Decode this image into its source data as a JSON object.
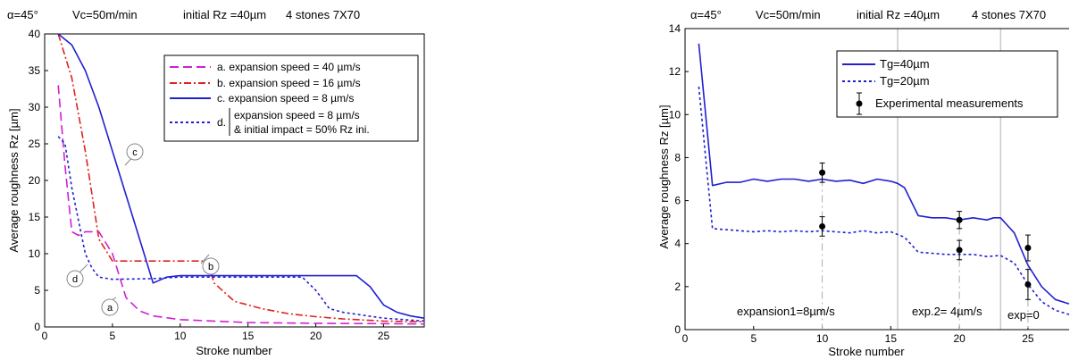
{
  "chart_data": [
    {
      "type": "line",
      "header": [
        "α=45°",
        "Vc=50m/min",
        "initial Rz =40µm",
        "4 stones 7X70"
      ],
      "title": "",
      "xlabel": "Stroke number",
      "ylabel": "Average roughness Rz [µm]",
      "xlim": [
        0,
        28
      ],
      "ylim": [
        0,
        40
      ],
      "xticks": [
        "0",
        "5",
        "10",
        "15",
        "20",
        "25"
      ],
      "yticks": [
        "0",
        "5",
        "10",
        "15",
        "20",
        "25",
        "30",
        "35",
        "40"
      ],
      "grid": false,
      "legend_position": "top-right",
      "legend": [
        {
          "key": "a",
          "lines": [
            "a. expansion speed = 40 µm/s"
          ]
        },
        {
          "key": "b",
          "lines": [
            "b. expansion speed = 16 µm/s"
          ]
        },
        {
          "key": "c",
          "lines": [
            "c. expansion speed =  8  µm/s"
          ]
        },
        {
          "key": "d",
          "prefix": "d.",
          "lines": [
            "expansion speed = 8  µm/s",
            "& initial impact = 50% Rz ini."
          ]
        }
      ],
      "annotations": [
        "c",
        "b",
        "d",
        "a"
      ],
      "series": [
        {
          "key": "a",
          "color": "#d020d0",
          "dash": "10,5",
          "x": [
            1,
            1.5,
            2,
            2.5,
            3,
            4,
            5,
            6,
            7,
            8,
            10,
            15,
            20,
            25,
            28
          ],
          "y": [
            33,
            22,
            13,
            12.5,
            13,
            13,
            10,
            4,
            2.2,
            1.5,
            1,
            0.6,
            0.5,
            0.45,
            0.4
          ]
        },
        {
          "key": "b",
          "color": "#e02020",
          "dash": "8,3,2,3",
          "x": [
            1,
            2,
            3,
            4,
            5,
            6,
            10,
            12,
            12.5,
            14,
            16,
            18,
            20,
            22,
            25,
            28
          ],
          "y": [
            40,
            34,
            24,
            12,
            9,
            9,
            9,
            9,
            6,
            3.5,
            2.5,
            1.8,
            1.4,
            1.1,
            0.8,
            0.7
          ]
        },
        {
          "key": "c",
          "color": "#2020d0",
          "dash": "",
          "x": [
            1,
            2,
            3,
            4,
            5,
            6,
            7,
            8,
            9,
            10,
            15,
            20,
            21,
            22,
            23,
            24,
            25,
            26,
            27,
            28
          ],
          "y": [
            40,
            38.5,
            35,
            30,
            24,
            18,
            12,
            6,
            6.8,
            7,
            7,
            7,
            7,
            7,
            7,
            5.5,
            3,
            2,
            1.5,
            1.2
          ]
        },
        {
          "key": "d",
          "color": "#2020d0",
          "dash": "3,3",
          "x": [
            1,
            1.5,
            2,
            3,
            3.5,
            4,
            5,
            8,
            10,
            15,
            19,
            20,
            21,
            22,
            25,
            28
          ],
          "y": [
            26,
            25,
            19,
            10,
            8,
            6.8,
            6.5,
            6.6,
            6.8,
            6.8,
            6.8,
            5,
            2.5,
            2,
            1.2,
            0.8
          ]
        }
      ]
    },
    {
      "type": "line",
      "header": [
        "α=45°",
        "Vc=50m/min",
        "initial Rz =40µm",
        "4 stones 7X70"
      ],
      "title": "",
      "xlabel": "Stroke number",
      "ylabel": "Average roughness Rz [µm]",
      "xlim": [
        0,
        28
      ],
      "ylim": [
        0,
        14
      ],
      "xticks": [
        "0",
        "5",
        "10",
        "15",
        "20",
        "25"
      ],
      "yticks": [
        "0",
        "2",
        "4",
        "6",
        "8",
        "10",
        "12",
        "14"
      ],
      "grid": false,
      "legend_position": "top-right",
      "legend": [
        {
          "key": "tg40",
          "lines": [
            "Tg=40µm"
          ]
        },
        {
          "key": "tg20",
          "lines": [
            "Tg=20µm"
          ]
        },
        {
          "key": "exp",
          "lines": [
            "Experimental measurements"
          ]
        }
      ],
      "phase_labels": [
        "expansion1=8µm/s",
        "exp.2= 4µm/s",
        "exp=0"
      ],
      "phase_boundaries": [
        15.5,
        23
      ],
      "series": [
        {
          "key": "tg40",
          "name": "Tg=40µm",
          "color": "#2020d0",
          "dash": "",
          "x": [
            1,
            2,
            3,
            4,
            5,
            6,
            7,
            8,
            9,
            10,
            11,
            12,
            13,
            14,
            15,
            15.5,
            16,
            17,
            18,
            19,
            20,
            21,
            22,
            22.5,
            23,
            24,
            25,
            26,
            27,
            28
          ],
          "y": [
            13.3,
            6.7,
            6.85,
            6.85,
            7.0,
            6.9,
            7.0,
            7.0,
            6.9,
            7.0,
            6.9,
            6.95,
            6.8,
            7.0,
            6.9,
            6.8,
            6.6,
            5.3,
            5.2,
            5.2,
            5.1,
            5.2,
            5.1,
            5.2,
            5.2,
            4.5,
            3.0,
            2.0,
            1.4,
            1.2
          ]
        },
        {
          "key": "tg20",
          "name": "Tg=20µm",
          "color": "#2020d0",
          "dash": "3,3",
          "x": [
            1,
            2,
            3,
            4,
            5,
            6,
            7,
            8,
            9,
            10,
            11,
            12,
            13,
            14,
            15,
            16,
            17,
            18,
            19,
            20,
            21,
            22,
            23,
            24,
            25,
            26,
            27,
            28
          ],
          "y": [
            11.3,
            4.7,
            4.65,
            4.6,
            4.55,
            4.6,
            4.55,
            4.6,
            4.55,
            4.6,
            4.55,
            4.5,
            4.6,
            4.5,
            4.55,
            4.3,
            3.6,
            3.55,
            3.5,
            3.5,
            3.5,
            3.4,
            3.45,
            3.1,
            2.1,
            1.3,
            0.9,
            0.7
          ]
        },
        {
          "key": "exp",
          "name": "Experimental measurements",
          "type": "errorbar",
          "color": "#000000",
          "points": [
            {
              "x": 10,
              "y": 7.3,
              "err": 0.45
            },
            {
              "x": 10,
              "y": 4.8,
              "err": 0.45
            },
            {
              "x": 20,
              "y": 5.1,
              "err": 0.4
            },
            {
              "x": 20,
              "y": 3.7,
              "err": 0.45
            },
            {
              "x": 25,
              "y": 3.8,
              "err": 0.6
            },
            {
              "x": 25,
              "y": 2.1,
              "err": 0.7
            }
          ]
        }
      ]
    }
  ]
}
